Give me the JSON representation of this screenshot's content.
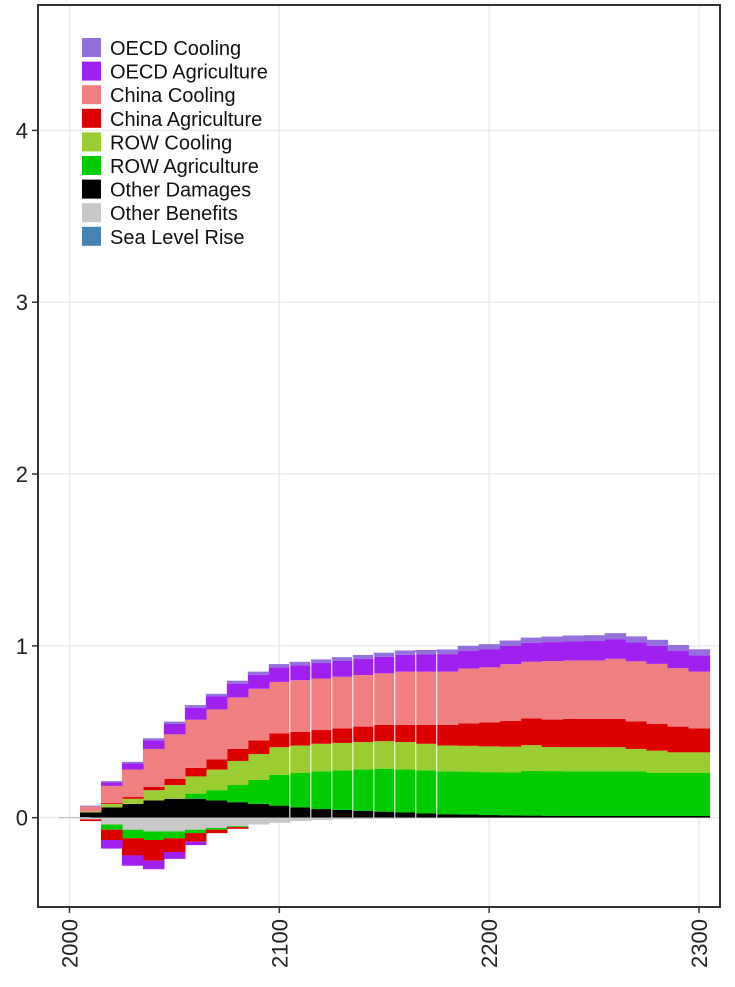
{
  "chart_data": {
    "type": "area",
    "stacked": true,
    "step": true,
    "title": "",
    "xlabel": "",
    "ylabel": "",
    "xlim": [
      1985,
      2310
    ],
    "ylim": [
      -0.52,
      4.73
    ],
    "x_ticks": [
      2000,
      2100,
      2200,
      2300
    ],
    "y_ticks": [
      0,
      1,
      2,
      3,
      4
    ],
    "grid": true,
    "legend_position": "top-left",
    "x": [
      2010,
      2020,
      2030,
      2040,
      2050,
      2060,
      2070,
      2080,
      2090,
      2100,
      2110,
      2120,
      2130,
      2140,
      2150,
      2160,
      2170,
      2180,
      2190,
      2200,
      2210,
      2220,
      2230,
      2240,
      2250,
      2260,
      2270,
      2280,
      2290,
      2300
    ],
    "stack_order_positive": [
      "Other Damages",
      "ROW Agriculture",
      "ROW Cooling",
      "China Agriculture",
      "China Cooling",
      "OECD Agriculture",
      "OECD Cooling",
      "Sea Level Rise"
    ],
    "stack_order_negative": [
      "Other Benefits",
      "ROW Agriculture",
      "China Agriculture",
      "OECD Agriculture"
    ],
    "series": [
      {
        "name": "OECD Cooling",
        "color": "#9370DB",
        "values": [
          0.005,
          0.008,
          0.01,
          0.012,
          0.014,
          0.015,
          0.016,
          0.017,
          0.018,
          0.019,
          0.02,
          0.021,
          0.022,
          0.023,
          0.024,
          0.025,
          0.026,
          0.027,
          0.028,
          0.029,
          0.03,
          0.031,
          0.032,
          0.033,
          0.034,
          0.035,
          0.035,
          0.035,
          0.035,
          0.035
        ]
      },
      {
        "name": "OECD Agriculture",
        "color": "#A020F0",
        "values": [
          0.0,
          0.02,
          0.035,
          0.05,
          0.06,
          0.07,
          0.075,
          0.08,
          0.082,
          0.085,
          0.087,
          0.09,
          0.092,
          0.094,
          0.096,
          0.098,
          0.1,
          0.102,
          0.104,
          0.106,
          0.108,
          0.11,
          0.111,
          0.112,
          0.113,
          0.114,
          0.11,
          0.105,
          0.1,
          0.095
        ]
      },
      {
        "name": "China Cooling",
        "color": "#F08080",
        "values": [
          0.03,
          0.1,
          0.16,
          0.22,
          0.26,
          0.28,
          0.29,
          0.3,
          0.3,
          0.3,
          0.3,
          0.3,
          0.3,
          0.3,
          0.3,
          0.31,
          0.31,
          0.31,
          0.32,
          0.32,
          0.33,
          0.33,
          0.34,
          0.34,
          0.34,
          0.35,
          0.35,
          0.35,
          0.34,
          0.33
        ]
      },
      {
        "name": "China Agriculture",
        "color": "#DD0000",
        "values": [
          0.0,
          0.005,
          0.01,
          0.02,
          0.035,
          0.05,
          0.06,
          0.07,
          0.08,
          0.08,
          0.08,
          0.08,
          0.085,
          0.09,
          0.095,
          0.1,
          0.11,
          0.12,
          0.13,
          0.14,
          0.15,
          0.155,
          0.16,
          0.165,
          0.165,
          0.165,
          0.16,
          0.155,
          0.15,
          0.14
        ]
      },
      {
        "name": "ROW Cooling",
        "color": "#9ACD32",
        "values": [
          0.005,
          0.02,
          0.03,
          0.06,
          0.08,
          0.1,
          0.12,
          0.14,
          0.15,
          0.16,
          0.16,
          0.16,
          0.16,
          0.16,
          0.16,
          0.16,
          0.155,
          0.15,
          0.15,
          0.15,
          0.15,
          0.15,
          0.14,
          0.14,
          0.14,
          0.14,
          0.13,
          0.13,
          0.12,
          0.12
        ]
      },
      {
        "name": "ROW Agriculture",
        "color": "#00CC00",
        "values": [
          0.0,
          0.0,
          0.0,
          0.0,
          0.0,
          0.03,
          0.06,
          0.1,
          0.14,
          0.18,
          0.2,
          0.22,
          0.23,
          0.24,
          0.25,
          0.25,
          0.25,
          0.25,
          0.25,
          0.25,
          0.25,
          0.26,
          0.26,
          0.26,
          0.26,
          0.26,
          0.26,
          0.25,
          0.25,
          0.25
        ]
      },
      {
        "name": "Other Damages",
        "color": "#000000",
        "values": [
          0.03,
          0.06,
          0.08,
          0.1,
          0.11,
          0.11,
          0.1,
          0.09,
          0.08,
          0.07,
          0.06,
          0.05,
          0.045,
          0.04,
          0.035,
          0.03,
          0.025,
          0.02,
          0.018,
          0.015,
          0.013,
          0.012,
          0.011,
          0.01,
          0.01,
          0.01,
          0.01,
          0.01,
          0.01,
          0.01
        ]
      },
      {
        "name": "Other Benefits",
        "color": "#C8C8C8",
        "values": [
          -0.01,
          -0.04,
          -0.07,
          -0.08,
          -0.08,
          -0.07,
          -0.06,
          -0.05,
          -0.04,
          -0.03,
          -0.02,
          -0.015,
          -0.01,
          -0.008,
          -0.006,
          -0.005,
          -0.004,
          -0.003,
          -0.002,
          -0.002,
          -0.001,
          -0.001,
          -0.001,
          -0.001,
          -0.001,
          -0.001,
          -0.001,
          -0.001,
          -0.001,
          -0.001
        ]
      },
      {
        "name": "Sea Level Rise",
        "color": "#4682B4",
        "values": [
          0,
          0,
          0,
          0,
          0,
          0,
          0,
          0,
          0,
          0,
          0,
          0,
          0,
          0,
          0,
          0,
          0,
          0,
          0,
          0,
          0,
          0,
          0,
          0,
          0,
          0,
          0,
          0,
          0,
          0
        ]
      }
    ],
    "negative_parts": {
      "ROW Agriculture": [
        0.0,
        -0.03,
        -0.05,
        -0.05,
        -0.04,
        -0.02,
        -0.01,
        -0.005,
        0,
        0,
        0,
        0,
        0,
        0,
        0,
        0,
        0,
        0,
        0,
        0,
        0,
        0,
        0,
        0,
        0,
        0,
        0,
        0,
        0,
        0
      ],
      "China Agriculture": [
        -0.01,
        -0.06,
        -0.1,
        -0.12,
        -0.08,
        -0.05,
        -0.02,
        -0.01,
        0,
        0,
        0,
        0,
        0,
        0,
        0,
        0,
        0,
        0,
        0,
        0,
        0,
        0,
        0,
        0,
        0,
        0,
        0,
        0,
        0,
        0
      ],
      "OECD Agriculture": [
        0.0,
        -0.05,
        -0.06,
        -0.05,
        -0.04,
        -0.02,
        0,
        0,
        0,
        0,
        0,
        0,
        0,
        0,
        0,
        0,
        0,
        0,
        0,
        0,
        0,
        0,
        0,
        0,
        0,
        0,
        0,
        0,
        0,
        0
      ]
    },
    "legend": [
      "OECD Cooling",
      "OECD Agriculture",
      "China Cooling",
      "China Agriculture",
      "ROW Cooling",
      "ROW Agriculture",
      "Other Damages",
      "Other Benefits",
      "Sea Level Rise"
    ],
    "colors": {
      "panel_background": "#FFFFFF",
      "grid": "#EBEBEB",
      "border": "#333333"
    }
  }
}
